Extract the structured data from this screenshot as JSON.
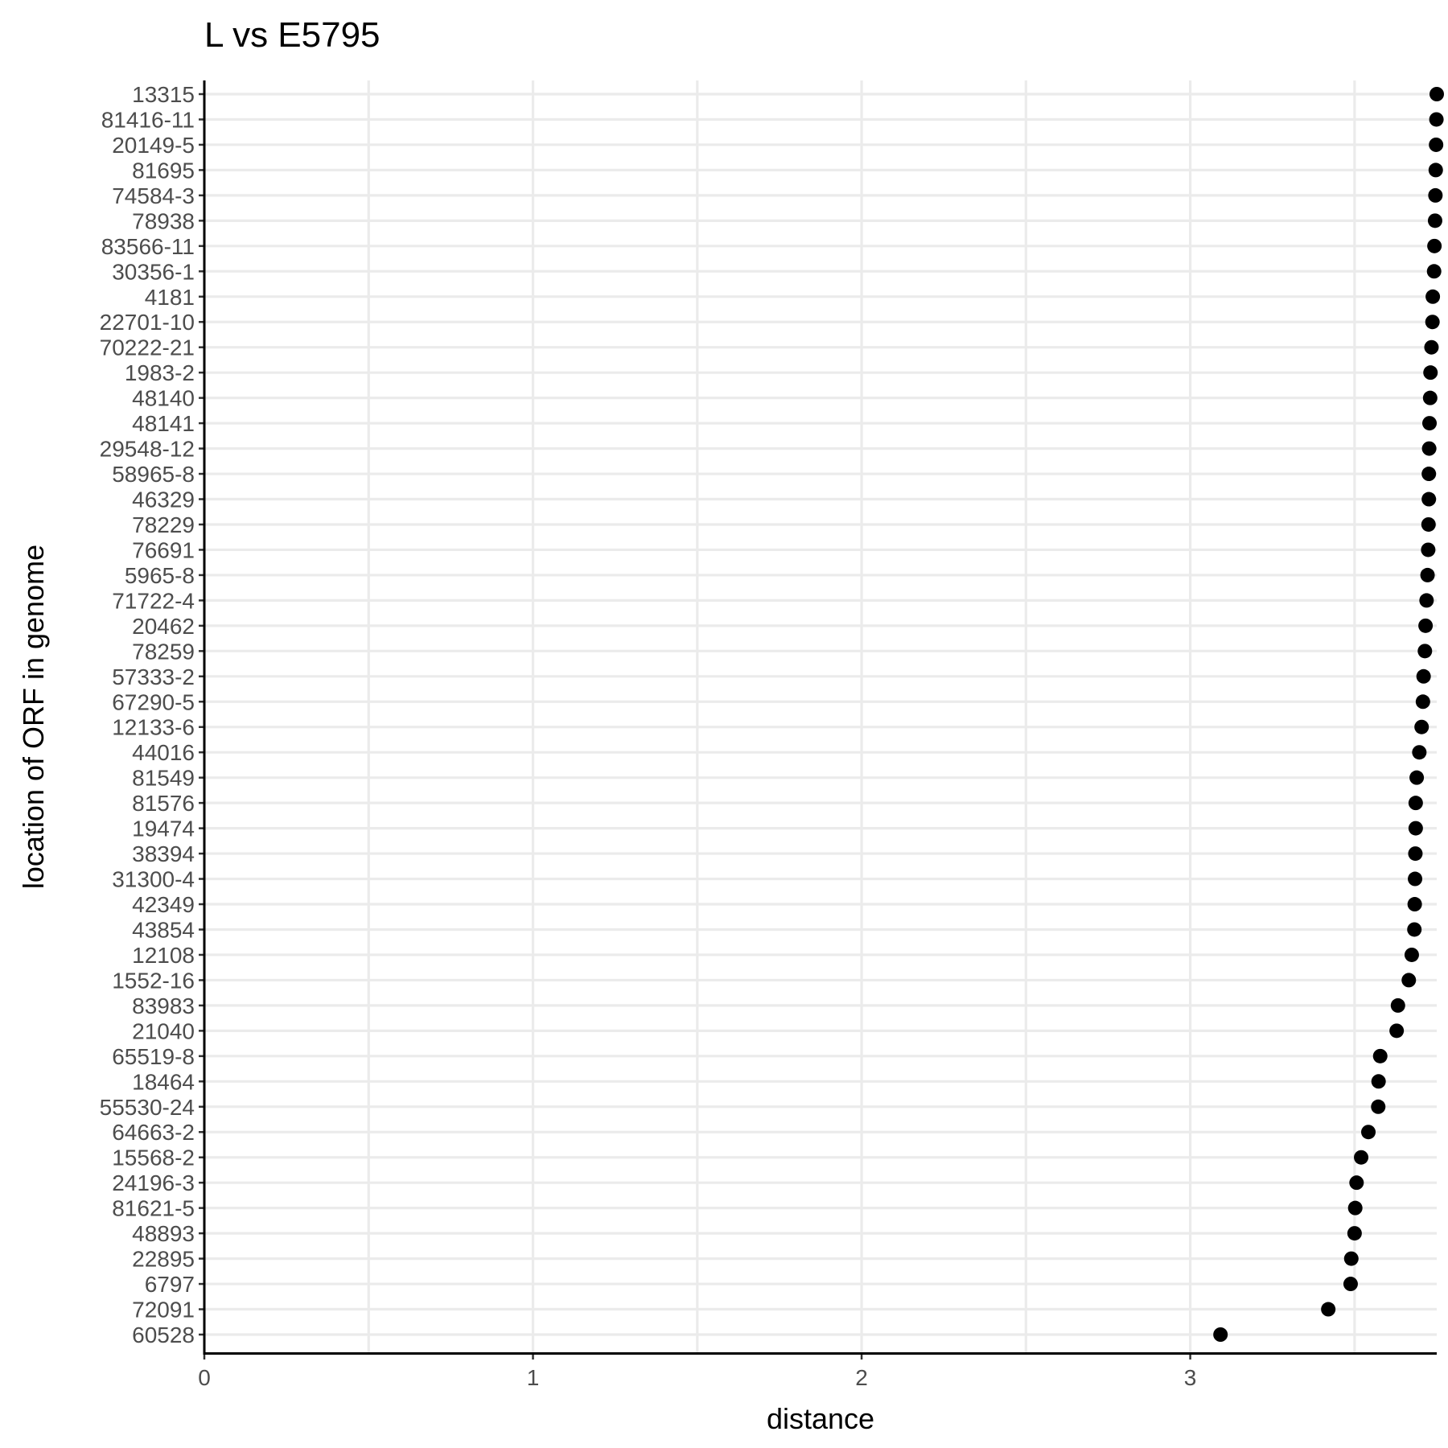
{
  "chart_data": {
    "type": "scatter",
    "title": "L vs E5795",
    "xlabel": "distance",
    "ylabel": "location of ORF in genome",
    "xlim": [
      0,
      3.75
    ],
    "xticks": [
      0,
      1,
      2,
      3
    ],
    "xtick_labels": [
      "0",
      "1",
      "2",
      "3"
    ],
    "x_minor_gridlines": [
      0.5,
      1.5,
      2.5,
      3.5
    ],
    "grid": true,
    "point_color": "#000000",
    "grid_color": "#ebebeb",
    "categories": [
      "13315",
      "81416-11",
      "20149-5",
      "81695",
      "74584-3",
      "78938",
      "83566-11",
      "30356-1",
      "4181",
      "22701-10",
      "70222-21",
      "1983-2",
      "48140",
      "48141",
      "29548-12",
      "58965-8",
      "46329",
      "78229",
      "76691",
      "5965-8",
      "71722-4",
      "20462",
      "78259",
      "57333-2",
      "67290-5",
      "12133-6",
      "44016",
      "81549",
      "81576",
      "19474",
      "38394",
      "31300-4",
      "42349",
      "43854",
      "12108",
      "1552-16",
      "83983",
      "21040",
      "65519-8",
      "18464",
      "55530-24",
      "64663-2",
      "15568-2",
      "24196-3",
      "81621-5",
      "48893",
      "22895",
      "6797",
      "72091",
      "60528"
    ],
    "values": [
      3.75,
      3.749,
      3.748,
      3.747,
      3.746,
      3.745,
      3.743,
      3.742,
      3.738,
      3.737,
      3.734,
      3.731,
      3.73,
      3.728,
      3.727,
      3.726,
      3.726,
      3.725,
      3.724,
      3.722,
      3.719,
      3.716,
      3.714,
      3.71,
      3.708,
      3.704,
      3.697,
      3.689,
      3.686,
      3.686,
      3.685,
      3.684,
      3.683,
      3.682,
      3.674,
      3.665,
      3.632,
      3.628,
      3.578,
      3.573,
      3.572,
      3.542,
      3.52,
      3.506,
      3.502,
      3.5,
      3.49,
      3.488,
      3.42,
      3.092
    ]
  }
}
